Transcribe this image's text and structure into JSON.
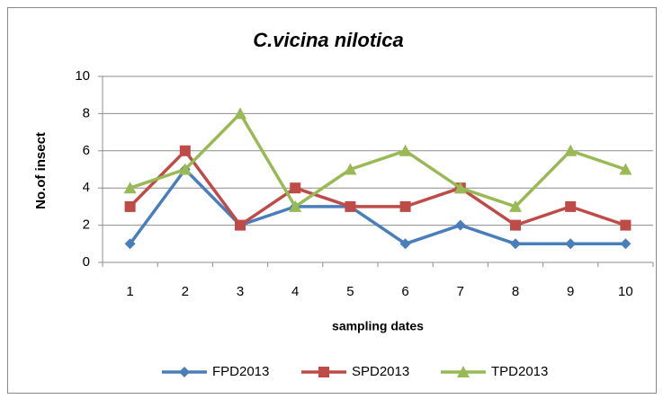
{
  "chart_data": {
    "type": "line",
    "title": "C.vicina nilotica",
    "x_label": "sampling dates",
    "y_label": "No.of insect",
    "categories": [
      "1",
      "2",
      "3",
      "4",
      "5",
      "6",
      "7",
      "8",
      "9",
      "10"
    ],
    "series": [
      {
        "name": "FPD2013",
        "color": "#4a7ebb",
        "marker": "diamond",
        "values": [
          1,
          5,
          2,
          3,
          3,
          1,
          2,
          1,
          1,
          1
        ]
      },
      {
        "name": "SPD2013",
        "color": "#be4b48",
        "marker": "square",
        "values": [
          3,
          6,
          2,
          4,
          3,
          3,
          4,
          2,
          3,
          2
        ]
      },
      {
        "name": "TPD2013",
        "color": "#98b954",
        "marker": "triangle",
        "values": [
          4,
          5,
          8,
          3,
          5,
          6,
          4,
          3,
          6,
          5
        ]
      }
    ],
    "ylim": [
      0,
      10
    ],
    "yticks": [
      0,
      2,
      4,
      6,
      8,
      10
    ],
    "grid": true,
    "legend": "bottom"
  }
}
